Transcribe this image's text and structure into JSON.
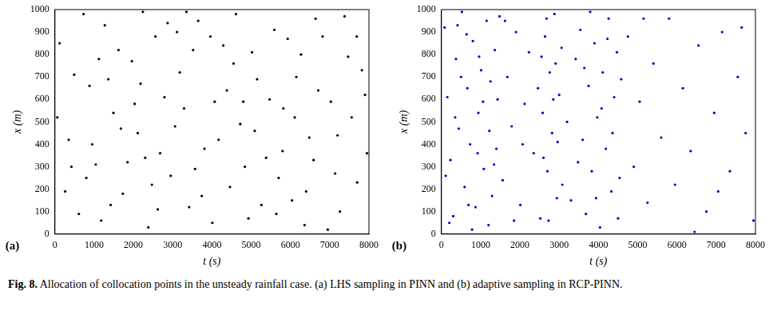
{
  "caption": {
    "label": "Fig. 8.",
    "text": "Allocation of collocation points in the unsteady rainfall case. (a) LHS sampling in PINN and (b) adaptive sampling in RCP-PINN."
  },
  "chart_data": [
    {
      "type": "scatter",
      "panel_label": "(a)",
      "x_label": "t (s)",
      "y_label": "x (m)",
      "xlim": [
        0,
        8000
      ],
      "xticks": [
        0,
        1000,
        2000,
        3000,
        4000,
        5000,
        6000,
        7000,
        8000
      ],
      "ylim": [
        0,
        1000
      ],
      "yticks": [
        0,
        100,
        200,
        300,
        400,
        500,
        600,
        700,
        800,
        900,
        1000
      ],
      "grid": false,
      "color": "#000000",
      "marker": "circle",
      "x": [
        120,
        350,
        610,
        880,
        1040,
        1270,
        1490,
        1730,
        1960,
        2110,
        2380,
        2560,
        2790,
        2950,
        3180,
        3420,
        3650,
        3810,
        4070,
        4290,
        4460,
        4720,
        4930,
        5150,
        5380,
        5590,
        5820,
        6040,
        6270,
        6480,
        6710,
        6950,
        7140,
        7380,
        7560,
        7820,
        7950,
        260,
        490,
        730,
        950,
        1180,
        1360,
        1620,
        1850,
        2030,
        2240,
        2470,
        2680,
        2870,
        3060,
        3290,
        3520,
        3740,
        3960,
        4170,
        4380,
        4610,
        4840,
        5020,
        5260,
        5470,
        5700,
        5930,
        6150,
        6360,
        6590,
        6820,
        7030,
        7260,
        7470,
        7700,
        7900,
        60,
        420,
        800,
        1120,
        1420,
        1680,
        2180,
        2620,
        3110,
        3570,
        4010,
        4550,
        5090,
        5640,
        6110,
        6640,
        7200,
        7690,
        2300,
        3350,
        4800,
        6400,
        5800
      ],
      "values": [
        850,
        420,
        90,
        660,
        310,
        930,
        540,
        180,
        770,
        450,
        30,
        880,
        610,
        260,
        720,
        120,
        950,
        380,
        590,
        840,
        210,
        490,
        70,
        690,
        340,
        910,
        560,
        150,
        800,
        430,
        640,
        20,
        270,
        970,
        520,
        730,
        360,
        190,
        710,
        980,
        400,
        60,
        690,
        820,
        320,
        580,
        990,
        220,
        360,
        940,
        480,
        560,
        820,
        170,
        880,
        420,
        640,
        980,
        300,
        810,
        130,
        600,
        250,
        870,
        700,
        40,
        330,
        880,
        590,
        100,
        790,
        230,
        620,
        520,
        300,
        250,
        780,
        130,
        470,
        670,
        110,
        900,
        290,
        50,
        760,
        460,
        90,
        520,
        960,
        440,
        880,
        340,
        990,
        590,
        190,
        370
      ]
    },
    {
      "type": "scatter",
      "panel_label": "(b)",
      "x_label": "t (s)",
      "y_label": "x (m)",
      "xlim": [
        0,
        8000
      ],
      "xticks": [
        0,
        1000,
        2000,
        3000,
        4000,
        5000,
        6000,
        7000,
        8000
      ],
      "ylim": [
        0,
        1000
      ],
      "yticks": [
        0,
        100,
        200,
        300,
        400,
        500,
        600,
        700,
        800,
        900,
        1000
      ],
      "grid": false,
      "color": "#0000cc",
      "marker": "circle",
      "x": [
        80,
        150,
        230,
        300,
        370,
        440,
        520,
        590,
        660,
        730,
        800,
        870,
        940,
        1010,
        1080,
        1150,
        1220,
        1290,
        1360,
        1430,
        200,
        350,
        500,
        640,
        780,
        920,
        1060,
        1200,
        1340,
        1480,
        110,
        410,
        690,
        960,
        1250,
        1400,
        1560,
        1680,
        1790,
        1900,
        2010,
        2120,
        2230,
        2350,
        2460,
        1620,
        1850,
        2070,
        2520,
        2580,
        2640,
        2700,
        2760,
        2820,
        2880,
        2940,
        3000,
        3060,
        2600,
        2730,
        2850,
        2960,
        3080,
        2550,
        2680,
        2910,
        3200,
        3300,
        3420,
        3480,
        3540,
        3600,
        3680,
        3750,
        3830,
        3900,
        3970,
        4040,
        4110,
        4190,
        4260,
        4330,
        4400,
        4470,
        4540,
        3640,
        3790,
        3940,
        4080,
        4230,
        4360,
        4500,
        4580,
        4750,
        4900,
        5050,
        5250,
        5400,
        5600,
        5800,
        5950,
        6150,
        6350,
        6550,
        6750,
        6950,
        7150,
        7350,
        7550,
        7750,
        7950,
        5150,
        6450,
        7050,
        7650
      ],
      "values": [
        920,
        610,
        330,
        80,
        780,
        470,
        990,
        210,
        650,
        400,
        860,
        120,
        540,
        730,
        290,
        950,
        460,
        170,
        820,
        600,
        50,
        520,
        700,
        890,
        20,
        360,
        590,
        40,
        310,
        970,
        260,
        930,
        130,
        790,
        680,
        380,
        240,
        700,
        480,
        900,
        130,
        580,
        810,
        360,
        650,
        950,
        60,
        400,
        70,
        540,
        880,
        280,
        720,
        450,
        980,
        160,
        620,
        830,
        340,
        60,
        600,
        410,
        220,
        790,
        960,
        760,
        500,
        150,
        780,
        320,
        910,
        420,
        90,
        660,
        280,
        850,
        520,
        30,
        720,
        380,
        960,
        190,
        610,
        810,
        250,
        740,
        990,
        160,
        560,
        870,
        450,
        70,
        690,
        880,
        300,
        590,
        140,
        760,
        430,
        960,
        220,
        650,
        370,
        840,
        100,
        540,
        900,
        280,
        700,
        450,
        60,
        960,
        10,
        190,
        920
      ]
    }
  ]
}
